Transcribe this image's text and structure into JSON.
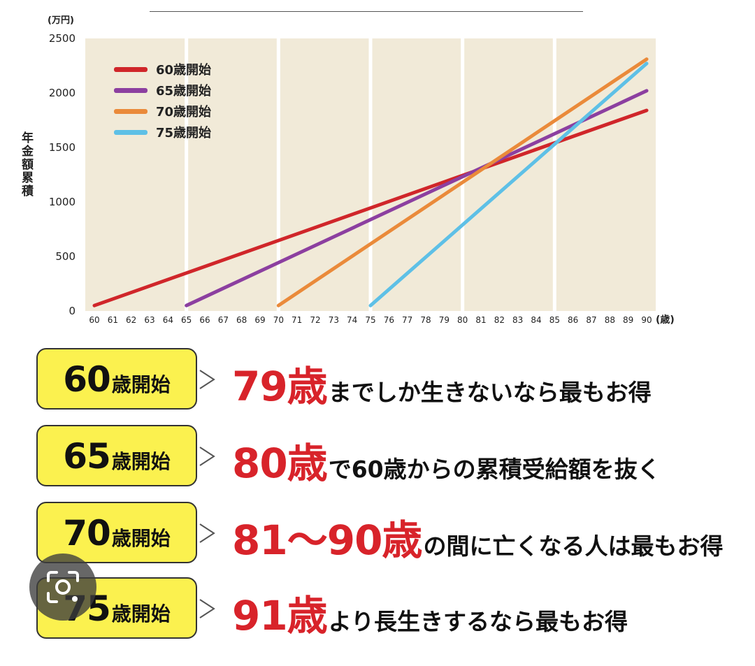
{
  "chart_data": {
    "type": "line",
    "y_unit": "(万円)",
    "ylabel": "年金額累積",
    "x_unit": "(歳)",
    "xlim": [
      60,
      90
    ],
    "ylim": [
      0,
      2500
    ],
    "x_ticks": [
      60,
      61,
      62,
      63,
      64,
      65,
      66,
      67,
      68,
      69,
      70,
      71,
      72,
      73,
      74,
      75,
      76,
      77,
      78,
      79,
      80,
      81,
      82,
      83,
      84,
      85,
      86,
      87,
      88,
      89,
      90
    ],
    "y_ticks": [
      0,
      500,
      1000,
      1500,
      2000,
      2500
    ],
    "series": [
      {
        "name": "60歳開始",
        "color": "#d0262a",
        "x": [
          60,
          90
        ],
        "y": [
          50,
          1840
        ]
      },
      {
        "name": "65歳開始",
        "color": "#8c3fa0",
        "x": [
          65,
          90
        ],
        "y": [
          50,
          2020
        ]
      },
      {
        "name": "70歳開始",
        "color": "#ea8a3a",
        "x": [
          70,
          90
        ],
        "y": [
          50,
          2310
        ]
      },
      {
        "name": "75歳開始",
        "color": "#5ec0e6",
        "x": [
          75,
          90
        ],
        "y": [
          50,
          2270
        ]
      }
    ],
    "background_color": "#f1ead8",
    "legend_position": "top-left"
  },
  "captions": [
    {
      "num": "60",
      "suffix": "歳開始",
      "highlight": "79歳",
      "text": "までしか生きないなら最もお得"
    },
    {
      "num": "65",
      "suffix": "歳開始",
      "highlight": "80歳",
      "text": "で60歳からの累積受給額を抜く"
    },
    {
      "num": "70",
      "suffix": "歳開始",
      "highlight": "81〜90歳",
      "text": "の間に亡くなる人は最もお得"
    },
    {
      "num": "75",
      "suffix": "歳開始",
      "highlight": "91歳",
      "text": "より長生きするなら最もお得"
    }
  ],
  "overlay": {
    "icon": "lens-camera-icon"
  }
}
